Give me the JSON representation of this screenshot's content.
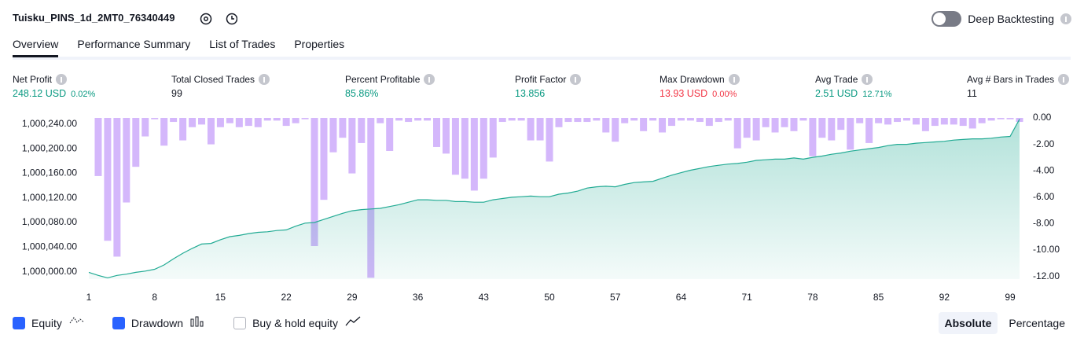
{
  "header": {
    "title": "Tuisku_PINS_1d_2MT0_76340449",
    "toggle": {
      "label": "Deep Backtesting",
      "on": false
    }
  },
  "tabs": {
    "items": [
      "Overview",
      "Performance Summary",
      "List of Trades",
      "Properties"
    ],
    "active": 0
  },
  "stats": [
    {
      "label": "Net Profit",
      "value": "248.12 USD",
      "extra": "0.02%",
      "color": "#089981"
    },
    {
      "label": "Total Closed Trades",
      "value": "99",
      "color": "#131722"
    },
    {
      "label": "Percent Profitable",
      "value": "85.86%",
      "color": "#089981"
    },
    {
      "label": "Profit Factor",
      "value": "13.856",
      "color": "#089981"
    },
    {
      "label": "Max Drawdown",
      "value": "13.93 USD",
      "extra": "0.00%",
      "color": "#f23645"
    },
    {
      "label": "Avg Trade",
      "value": "2.51 USD",
      "extra": "12.71%",
      "color": "#089981"
    },
    {
      "label": "Avg # Bars in Trades",
      "value": "11",
      "color": "#131722"
    }
  ],
  "chart_data": {
    "type": "bar-line",
    "xlim": [
      1,
      100
    ],
    "xticks": [
      1,
      8,
      15,
      22,
      29,
      36,
      43,
      50,
      57,
      64,
      71,
      78,
      85,
      92,
      99
    ],
    "ylim": [
      999988,
      1000250
    ],
    "yticks": [
      {
        "value": 1000000,
        "label": "1,000,000.00"
      },
      {
        "value": 1000040,
        "label": "1,000,040.00"
      },
      {
        "value": 1000080,
        "label": "1,000,080.00"
      },
      {
        "value": 1000120,
        "label": "1,000,120.00"
      },
      {
        "value": 1000160,
        "label": "1,000,160.00"
      },
      {
        "value": 1000200,
        "label": "1,000,200.00"
      },
      {
        "value": 1000240,
        "label": "1,000,240.00"
      }
    ],
    "y2lim": [
      -12.2,
      0
    ],
    "y2ticks": [
      {
        "value": 0,
        "label": "0.00"
      },
      {
        "value": -2,
        "label": "-2.00"
      },
      {
        "value": -4,
        "label": "-4.00"
      },
      {
        "value": -6,
        "label": "-6.00"
      },
      {
        "value": -8,
        "label": "-8.00"
      },
      {
        "value": -10,
        "label": "-10.00"
      },
      {
        "value": -12,
        "label": "-12.00"
      }
    ],
    "series": [
      {
        "name": "Equity",
        "type": "area",
        "color": "#22ab94",
        "visible": true,
        "x": [
          1,
          2,
          3,
          4,
          5,
          6,
          7,
          8,
          9,
          10,
          11,
          12,
          13,
          14,
          15,
          16,
          17,
          18,
          19,
          20,
          21,
          22,
          23,
          24,
          25,
          26,
          27,
          28,
          29,
          30,
          31,
          32,
          33,
          34,
          35,
          36,
          37,
          38,
          39,
          40,
          41,
          42,
          43,
          44,
          45,
          46,
          47,
          48,
          49,
          50,
          51,
          52,
          53,
          54,
          55,
          56,
          57,
          58,
          59,
          60,
          61,
          62,
          63,
          64,
          65,
          66,
          67,
          68,
          69,
          70,
          71,
          72,
          73,
          74,
          75,
          76,
          77,
          78,
          79,
          80,
          81,
          82,
          83,
          84,
          85,
          86,
          87,
          88,
          89,
          90,
          91,
          92,
          93,
          94,
          95,
          96,
          97,
          98,
          99,
          100
        ],
        "values": [
          999999,
          999994,
          999990,
          999994,
          999996,
          999999,
          1000001,
          1000004,
          1000011,
          1000021,
          1000030,
          1000038,
          1000045,
          1000046,
          1000052,
          1000057,
          1000059,
          1000062,
          1000064,
          1000065,
          1000067,
          1000068,
          1000074,
          1000079,
          1000080,
          1000085,
          1000090,
          1000095,
          1000099,
          1000101,
          1000102,
          1000103,
          1000106,
          1000109,
          1000113,
          1000117,
          1000117,
          1000116,
          1000116,
          1000114,
          1000114,
          1000113,
          1000113,
          1000117,
          1000119,
          1000121,
          1000122,
          1000123,
          1000122,
          1000122,
          1000126,
          1000128,
          1000131,
          1000136,
          1000138,
          1000139,
          1000138,
          1000142,
          1000145,
          1000146,
          1000147,
          1000152,
          1000157,
          1000161,
          1000165,
          1000168,
          1000171,
          1000173,
          1000175,
          1000176,
          1000178,
          1000181,
          1000182,
          1000183,
          1000183,
          1000185,
          1000183,
          1000186,
          1000188,
          1000191,
          1000193,
          1000196,
          1000198,
          1000200,
          1000202,
          1000205,
          1000207,
          1000207,
          1000209,
          1000210,
          1000211,
          1000212,
          1000214,
          1000215,
          1000216,
          1000216,
          1000217,
          1000219,
          1000220,
          1000248
        ]
      },
      {
        "name": "Drawdown",
        "type": "bar",
        "axis": "y2",
        "color": "#c9a5fa",
        "visible": true,
        "x": [
          2,
          3,
          4,
          5,
          6,
          7,
          8,
          9,
          10,
          11,
          12,
          13,
          14,
          15,
          16,
          17,
          18,
          19,
          20,
          21,
          22,
          23,
          24,
          25,
          26,
          27,
          28,
          29,
          30,
          31,
          32,
          33,
          34,
          35,
          36,
          37,
          38,
          39,
          40,
          41,
          42,
          43,
          44,
          45,
          46,
          47,
          48,
          49,
          50,
          51,
          52,
          53,
          54,
          55,
          56,
          57,
          58,
          59,
          60,
          61,
          62,
          63,
          64,
          65,
          66,
          67,
          68,
          69,
          70,
          71,
          72,
          73,
          74,
          75,
          76,
          77,
          78,
          79,
          80,
          81,
          82,
          83,
          84,
          85,
          86,
          87,
          88,
          89,
          90,
          91,
          92,
          93,
          94,
          95,
          96,
          97,
          98,
          99,
          100
        ],
        "values": [
          -4.4,
          -9.3,
          -10.5,
          -6.4,
          -3.7,
          -1.4,
          -0.1,
          -2.1,
          -0.3,
          -1.7,
          -0.7,
          -0.5,
          -2.0,
          -0.7,
          -0.4,
          -0.7,
          -0.6,
          -0.7,
          -0.2,
          -0.2,
          -0.6,
          -0.4,
          -0.1,
          -9.7,
          -6.2,
          -2.6,
          -1.5,
          -4.2,
          -1.9,
          -12.1,
          -0.4,
          -2.5,
          -0.2,
          -0.3,
          -0.2,
          -0.2,
          -2.2,
          -2.7,
          -4.3,
          -4.6,
          -5.5,
          -4.6,
          -3.0,
          -0.3,
          -0.2,
          -0.2,
          -1.7,
          -1.7,
          -3.3,
          -0.7,
          -0.3,
          -0.3,
          -0.3,
          -0.2,
          -1.1,
          -1.8,
          -0.4,
          -0.2,
          -1.0,
          -0.2,
          -1.1,
          -0.6,
          -0.2,
          -0.2,
          -0.3,
          -0.6,
          -0.3,
          -0.2,
          -2.3,
          -1.5,
          -1.7,
          -0.7,
          -1.1,
          -0.7,
          -1.0,
          -0.2,
          -2.9,
          -1.5,
          -1.7,
          -0.9,
          -2.4,
          -0.4,
          -1.9,
          -0.4,
          -0.5,
          -0.3,
          -0.2,
          -0.5,
          -1.0,
          -0.6,
          -0.5,
          -0.5,
          -0.6,
          -0.8,
          -0.4,
          -0.2,
          -0.1,
          -0.1,
          -0.3
        ]
      },
      {
        "name": "Buy & hold equity",
        "type": "line",
        "color": "#2962ff",
        "visible": false
      }
    ]
  },
  "view_modes": {
    "items": [
      "Absolute",
      "Percentage"
    ],
    "active": 0
  }
}
